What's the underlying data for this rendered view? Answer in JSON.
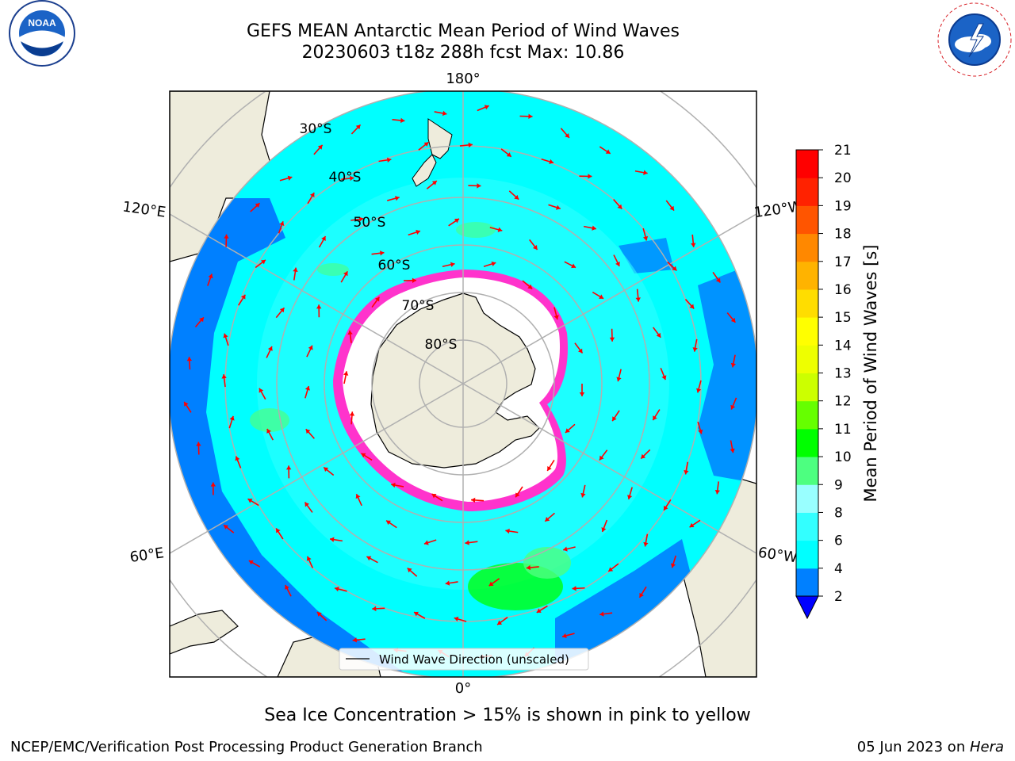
{
  "title": {
    "line1": "GEFS MEAN Antarctic Mean Period of Wind Waves",
    "line2": "20230603 t18z 288h fcst   Max: 10.86"
  },
  "logos": {
    "left": "NOAA",
    "left_ring_text": "NATIONAL OCEANIC AND ATMOSPHERIC ADMINISTRATION · U.S. DEPARTMENT OF COMMERCE",
    "right_ring_text": "NATIONAL WEATHER SERVICE"
  },
  "map": {
    "projection": "south-polar-stereographic",
    "longitude_labels": {
      "top": "180°",
      "bottom": "0°",
      "left_upper": "120°E",
      "left_lower": "60°E",
      "right_upper": "120°W",
      "right_lower": "60°W"
    },
    "latitude_labels": [
      "30°S",
      "40°S",
      "50°S",
      "60°S",
      "70°S",
      "80°S"
    ],
    "legend": "Wind Wave Direction (unscaled)",
    "colors": {
      "land": "#eeecdc",
      "ocean_default": "#00ffff",
      "ocean_low": "#0080ff",
      "ocean_mid": "#33ffff",
      "ocean_high": "#4dff80",
      "ice_edge": "#ff33cc",
      "arrows": "#ff0000"
    }
  },
  "colorbar": {
    "label": "Mean Period of Wind Waves [s]",
    "ticks": [
      "2",
      "4",
      "6",
      "8",
      "9",
      "10",
      "11",
      "12",
      "13",
      "14",
      "15",
      "16",
      "17",
      "18",
      "19",
      "20",
      "21"
    ],
    "colors": [
      "#0080ff",
      "#00ffff",
      "#33ffff",
      "#99ffff",
      "#4dff80",
      "#00ff00",
      "#66ff00",
      "#ccff00",
      "#eeff00",
      "#ffff00",
      "#ffdd00",
      "#ffb300",
      "#ff8800",
      "#ff5500",
      "#ff2200",
      "#ff0000"
    ],
    "under_color": "#0000ff"
  },
  "caption": "Sea Ice Concentration > 15% is shown in pink to yellow",
  "footer": {
    "left": "NCEP/EMC/Verification Post Processing Product Generation Branch",
    "right_date": "05 Jun 2023 on ",
    "right_host": "Hera"
  }
}
